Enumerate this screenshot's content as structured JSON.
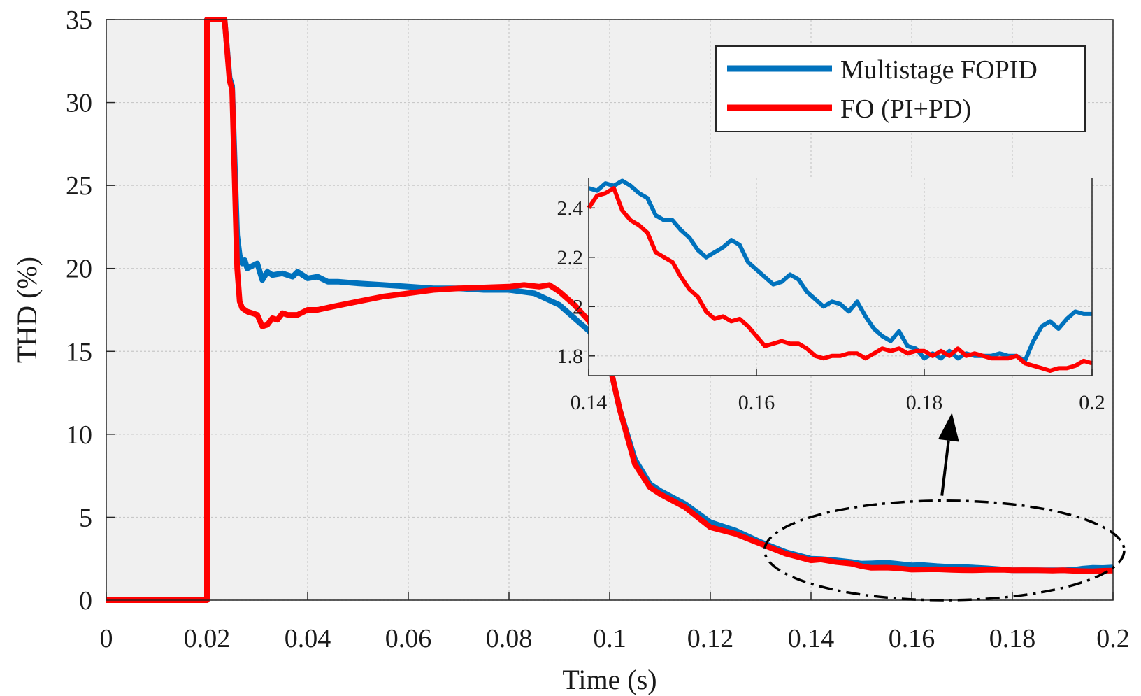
{
  "chart_data": {
    "type": "line",
    "title": "",
    "xlabel": "Time (s)",
    "ylabel": "THD (%)",
    "xlim": [
      0,
      0.2
    ],
    "ylim": [
      0,
      35
    ],
    "xticks": [
      0,
      0.02,
      0.04,
      0.06,
      0.08,
      0.1,
      0.12,
      0.14,
      0.16,
      0.18,
      0.2
    ],
    "xtick_labels": [
      "0",
      "0.02",
      "0.04",
      "0.06",
      "0.08",
      "0.1",
      "0.12",
      "0.14",
      "0.16",
      "0.18",
      "0.2"
    ],
    "yticks": [
      0,
      5,
      10,
      15,
      20,
      25,
      30,
      35
    ],
    "ytick_labels": [
      "0",
      "5",
      "10",
      "15",
      "20",
      "25",
      "30",
      "35"
    ],
    "grid": true,
    "legend_position": "top-right",
    "series": [
      {
        "name": "Multistage FOPID",
        "color": "#0072BD",
        "x": [
          0,
          0.02,
          0.02,
          0.0235,
          0.0245,
          0.025,
          0.026,
          0.0265,
          0.027,
          0.0275,
          0.028,
          0.03,
          0.031,
          0.032,
          0.033,
          0.035,
          0.037,
          0.038,
          0.04,
          0.042,
          0.044,
          0.046,
          0.05,
          0.055,
          0.06,
          0.065,
          0.07,
          0.075,
          0.08,
          0.085,
          0.09,
          0.093,
          0.096,
          0.1,
          0.102,
          0.105,
          0.108,
          0.11,
          0.115,
          0.12,
          0.125,
          0.13,
          0.135,
          0.14,
          0.142,
          0.145,
          0.148,
          0.15,
          0.152,
          0.155,
          0.157,
          0.16,
          0.162,
          0.165,
          0.168,
          0.17,
          0.172,
          0.175,
          0.178,
          0.18,
          0.182,
          0.185,
          0.188,
          0.19,
          0.192,
          0.194,
          0.196,
          0.198,
          0.2
        ],
        "y": [
          0,
          0,
          35,
          35,
          31.5,
          31,
          22,
          20.8,
          20.3,
          20.5,
          20.0,
          20.3,
          19.3,
          19.8,
          19.6,
          19.7,
          19.5,
          19.8,
          19.4,
          19.5,
          19.2,
          19.2,
          19.1,
          19.0,
          18.9,
          18.8,
          18.8,
          18.7,
          18.7,
          18.5,
          17.8,
          17.0,
          16.2,
          14.2,
          11.5,
          8.5,
          7.0,
          6.6,
          5.8,
          4.7,
          4.2,
          3.5,
          2.9,
          2.5,
          2.48,
          2.4,
          2.3,
          2.2,
          2.22,
          2.26,
          2.2,
          2.1,
          2.12,
          2.05,
          2.0,
          2.0,
          1.97,
          1.92,
          1.85,
          1.8,
          1.8,
          1.8,
          1.8,
          1.8,
          1.82,
          1.9,
          1.95,
          1.94,
          1.97
        ]
      },
      {
        "name": "FO (PI+PD)",
        "color": "#FF0000",
        "x": [
          0,
          0.02,
          0.02,
          0.0235,
          0.0245,
          0.025,
          0.026,
          0.0265,
          0.027,
          0.028,
          0.03,
          0.031,
          0.032,
          0.033,
          0.034,
          0.035,
          0.036,
          0.038,
          0.04,
          0.042,
          0.045,
          0.05,
          0.055,
          0.06,
          0.065,
          0.07,
          0.075,
          0.08,
          0.083,
          0.086,
          0.088,
          0.09,
          0.093,
          0.096,
          0.1,
          0.102,
          0.105,
          0.108,
          0.11,
          0.115,
          0.12,
          0.125,
          0.13,
          0.135,
          0.14,
          0.142,
          0.145,
          0.148,
          0.15,
          0.152,
          0.155,
          0.157,
          0.16,
          0.162,
          0.165,
          0.168,
          0.17,
          0.172,
          0.175,
          0.178,
          0.18,
          0.182,
          0.185,
          0.188,
          0.19,
          0.192,
          0.194,
          0.196,
          0.198,
          0.2
        ],
        "y": [
          0,
          0,
          35,
          35,
          31.3,
          30.8,
          20.0,
          18.0,
          17.6,
          17.4,
          17.2,
          16.5,
          16.6,
          17.0,
          16.9,
          17.3,
          17.2,
          17.2,
          17.5,
          17.5,
          17.7,
          18.0,
          18.3,
          18.5,
          18.7,
          18.8,
          18.85,
          18.9,
          19.0,
          18.9,
          19.0,
          18.6,
          17.8,
          16.8,
          14.2,
          11.5,
          8.2,
          6.8,
          6.4,
          5.6,
          4.4,
          4.0,
          3.4,
          2.8,
          2.4,
          2.45,
          2.3,
          2.2,
          2.05,
          1.95,
          1.96,
          1.93,
          1.84,
          1.85,
          1.86,
          1.82,
          1.81,
          1.8,
          1.82,
          1.83,
          1.8,
          1.81,
          1.8,
          1.78,
          1.8,
          1.77,
          1.75,
          1.74,
          1.77,
          1.78
        ]
      }
    ],
    "inset": {
      "xlim": [
        0.14,
        0.2
      ],
      "ylim": [
        1.72,
        2.52
      ],
      "xticks": [
        0.14,
        0.16,
        0.18,
        0.2
      ],
      "xtick_labels": [
        "0.14",
        "0.16",
        "0.18",
        "0.2"
      ],
      "yticks": [
        1.8,
        2.0,
        2.2,
        2.4
      ],
      "ytick_labels": [
        "1.8",
        "2",
        "2.2",
        "2.4"
      ],
      "grid": true,
      "series": [
        {
          "name": "Multistage FOPID",
          "color": "#0072BD",
          "x": [
            0.14,
            0.141,
            0.142,
            0.143,
            0.144,
            0.145,
            0.146,
            0.147,
            0.148,
            0.149,
            0.15,
            0.151,
            0.152,
            0.153,
            0.154,
            0.155,
            0.156,
            0.157,
            0.158,
            0.159,
            0.16,
            0.161,
            0.162,
            0.163,
            0.164,
            0.165,
            0.166,
            0.167,
            0.168,
            0.169,
            0.17,
            0.171,
            0.172,
            0.173,
            0.174,
            0.175,
            0.176,
            0.177,
            0.178,
            0.179,
            0.18,
            0.181,
            0.182,
            0.183,
            0.184,
            0.185,
            0.186,
            0.187,
            0.188,
            0.189,
            0.19,
            0.191,
            0.192,
            0.193,
            0.194,
            0.195,
            0.196,
            0.197,
            0.198,
            0.199,
            0.2
          ],
          "y": [
            2.48,
            2.47,
            2.5,
            2.49,
            2.51,
            2.49,
            2.46,
            2.44,
            2.37,
            2.35,
            2.35,
            2.31,
            2.28,
            2.23,
            2.2,
            2.22,
            2.24,
            2.27,
            2.25,
            2.18,
            2.15,
            2.12,
            2.09,
            2.1,
            2.13,
            2.11,
            2.06,
            2.03,
            2.0,
            2.02,
            2.01,
            1.98,
            2.02,
            1.96,
            1.91,
            1.88,
            1.86,
            1.9,
            1.84,
            1.83,
            1.79,
            1.81,
            1.79,
            1.82,
            1.79,
            1.81,
            1.8,
            1.8,
            1.8,
            1.81,
            1.8,
            1.8,
            1.78,
            1.86,
            1.92,
            1.94,
            1.91,
            1.95,
            1.98,
            1.97,
            1.97
          ]
        },
        {
          "name": "FO (PI+PD)",
          "color": "#FF0000",
          "x": [
            0.14,
            0.141,
            0.142,
            0.143,
            0.144,
            0.145,
            0.146,
            0.147,
            0.148,
            0.149,
            0.15,
            0.151,
            0.152,
            0.153,
            0.154,
            0.155,
            0.156,
            0.157,
            0.158,
            0.159,
            0.16,
            0.161,
            0.162,
            0.163,
            0.164,
            0.165,
            0.166,
            0.167,
            0.168,
            0.169,
            0.17,
            0.171,
            0.172,
            0.173,
            0.174,
            0.175,
            0.176,
            0.177,
            0.178,
            0.179,
            0.18,
            0.181,
            0.182,
            0.183,
            0.184,
            0.185,
            0.186,
            0.187,
            0.188,
            0.189,
            0.19,
            0.191,
            0.192,
            0.193,
            0.194,
            0.195,
            0.196,
            0.197,
            0.198,
            0.199,
            0.2
          ],
          "y": [
            2.4,
            2.45,
            2.46,
            2.48,
            2.39,
            2.35,
            2.33,
            2.3,
            2.22,
            2.2,
            2.18,
            2.12,
            2.07,
            2.04,
            1.98,
            1.95,
            1.96,
            1.94,
            1.95,
            1.92,
            1.88,
            1.84,
            1.85,
            1.86,
            1.85,
            1.85,
            1.83,
            1.8,
            1.79,
            1.8,
            1.8,
            1.81,
            1.81,
            1.79,
            1.81,
            1.83,
            1.82,
            1.83,
            1.81,
            1.82,
            1.82,
            1.8,
            1.82,
            1.8,
            1.83,
            1.8,
            1.81,
            1.8,
            1.79,
            1.79,
            1.79,
            1.8,
            1.77,
            1.76,
            1.75,
            1.74,
            1.75,
            1.75,
            1.76,
            1.78,
            1.77
          ]
        }
      ]
    },
    "annotations": [
      {
        "type": "ellipse",
        "style": "dash-dot",
        "encloses_x": [
          0.133,
          0.2
        ],
        "encloses_y": [
          0,
          6
        ]
      },
      {
        "type": "arrow",
        "from": [
          0.166,
          6.3
        ],
        "to": [
          0.168,
          11.3
        ]
      }
    ]
  }
}
